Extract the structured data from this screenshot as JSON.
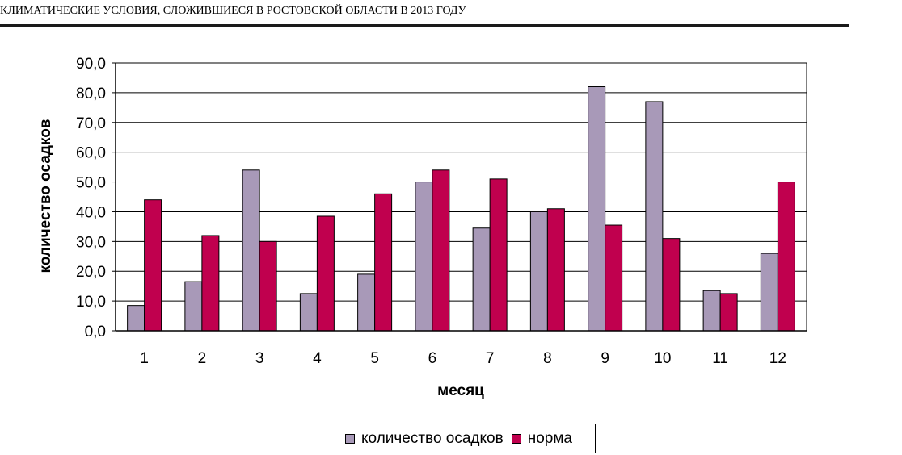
{
  "header": {
    "title": "КЛИМАТИЧЕСКИЕ  УСЛОВИЯ, СЛОЖИВШИЕСЯ В РОСТОВСКОЙ ОБЛАСТИ В  2013 ГОДУ"
  },
  "chart_data": {
    "type": "bar",
    "xlabel": "месяц",
    "ylabel": "количество осадков",
    "ylim": [
      0,
      90
    ],
    "ytick_step": 10,
    "ytick_labels": [
      "0,0",
      "10,0",
      "20,0",
      "30,0",
      "40,0",
      "50,0",
      "60,0",
      "70,0",
      "80,0",
      "90,0"
    ],
    "categories": [
      "1",
      "2",
      "3",
      "4",
      "5",
      "6",
      "7",
      "8",
      "9",
      "10",
      "11",
      "12"
    ],
    "series": [
      {
        "name": "количество осадков",
        "color": "#a899b8",
        "values": [
          8.5,
          16.5,
          54.0,
          12.5,
          19.0,
          50.0,
          34.5,
          40.0,
          82.0,
          77.0,
          13.5,
          26.0
        ]
      },
      {
        "name": "норма",
        "color": "#c0004e",
        "values": [
          44.0,
          32.0,
          30.0,
          38.5,
          46.0,
          54.0,
          51.0,
          41.0,
          35.5,
          31.0,
          12.5,
          50.0
        ]
      }
    ],
    "grid": true,
    "legend_position": "bottom"
  }
}
